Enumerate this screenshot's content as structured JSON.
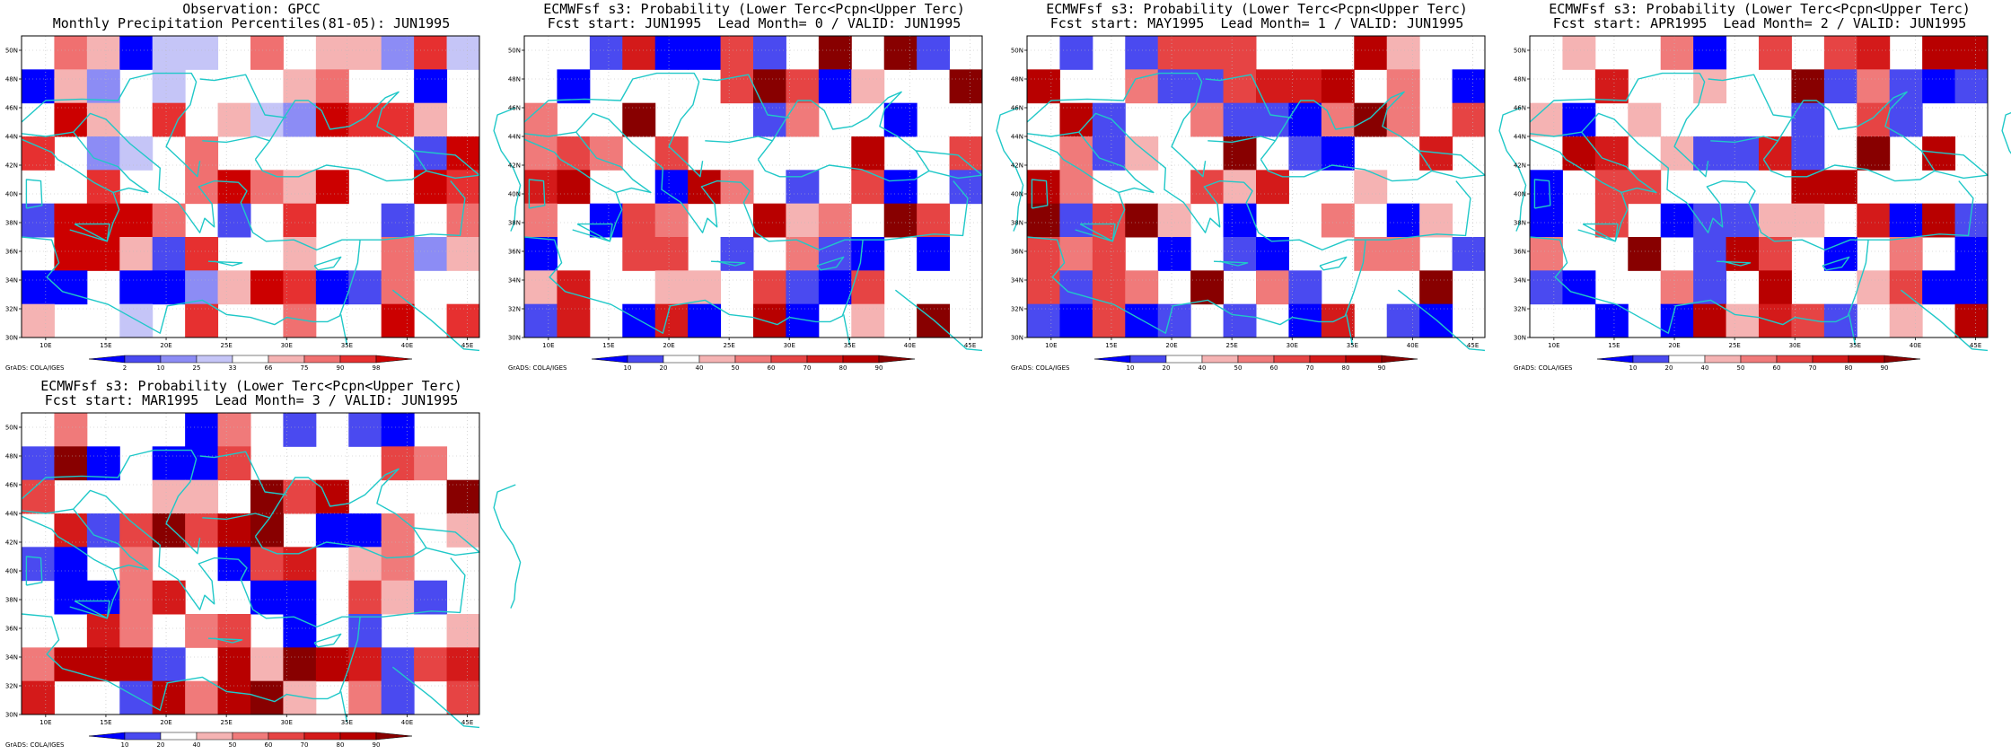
{
  "panels": [
    {
      "title_line1": "Observation: GPCC",
      "title_line2": "Monthly Precipitation Percentiles(81-05): JUN1995",
      "colorbar_labels": [
        "2",
        "10",
        "25",
        "33",
        "66",
        "75",
        "90",
        "98"
      ],
      "colorbar_colors": [
        "#0000ff",
        "#4a4af0",
        "#8c8cf5",
        "#c5c5f7",
        "#ffffff",
        "#f5b3b3",
        "#f07070",
        "#e63030",
        "#cc0000"
      ],
      "credit": "GrADS: COLA/IGES"
    },
    {
      "title_line1": "ECMWFsf s3: Probability (Lower Terc<Pcpn<Upper Terc)",
      "title_line2": "Fcst start: JUN1995  Lead Month= 0 / VALID: JUN1995",
      "colorbar_labels": [
        "10",
        "20",
        "40",
        "50",
        "60",
        "70",
        "80",
        "90"
      ],
      "colorbar_colors": [
        "#0000ff",
        "#4a4af0",
        "#ffffff",
        "#f5b3b3",
        "#f07a7a",
        "#e64444",
        "#d41a1a",
        "#b80000",
        "#880000"
      ],
      "credit": "GrADS: COLA/IGES"
    },
    {
      "title_line1": "ECMWFsf s3: Probability (Lower Terc<Pcpn<Upper Terc)",
      "title_line2": "Fcst start: MAY1995  Lead Month= 1 / VALID: JUN1995",
      "colorbar_labels": [
        "10",
        "20",
        "40",
        "50",
        "60",
        "70",
        "80",
        "90"
      ],
      "colorbar_colors": [
        "#0000ff",
        "#4a4af0",
        "#ffffff",
        "#f5b3b3",
        "#f07a7a",
        "#e64444",
        "#d41a1a",
        "#b80000",
        "#880000"
      ],
      "credit": "GrADS: COLA/IGES"
    },
    {
      "title_line1": "ECMWFsf s3: Probability (Lower Terc<Pcpn<Upper Terc)",
      "title_line2": "Fcst start: APR1995  Lead Month= 2 / VALID: JUN1995",
      "colorbar_labels": [
        "10",
        "20",
        "40",
        "50",
        "60",
        "70",
        "80",
        "90"
      ],
      "colorbar_colors": [
        "#0000ff",
        "#4a4af0",
        "#ffffff",
        "#f5b3b3",
        "#f07a7a",
        "#e64444",
        "#d41a1a",
        "#b80000",
        "#880000"
      ],
      "credit": "GrADS: COLA/IGES"
    },
    {
      "title_line1": "ECMWFsf s3: Probability (Lower Terc<Pcpn<Upper Terc)",
      "title_line2": "Fcst start: MAR1995  Lead Month= 3 / VALID: JUN1995",
      "colorbar_labels": [
        "10",
        "20",
        "40",
        "50",
        "60",
        "70",
        "80",
        "90"
      ],
      "colorbar_colors": [
        "#0000ff",
        "#4a4af0",
        "#ffffff",
        "#f5b3b3",
        "#f07a7a",
        "#e64444",
        "#d41a1a",
        "#b80000",
        "#880000"
      ],
      "credit": "GrADS: COLA/IGES"
    }
  ],
  "map": {
    "lon_range": [
      8,
      46
    ],
    "lat_range": [
      30,
      51
    ],
    "lon_ticks": [
      "10E",
      "15E",
      "20E",
      "25E",
      "30E",
      "35E",
      "40E",
      "45E"
    ],
    "lat_ticks": [
      "30N",
      "32N",
      "34N",
      "36N",
      "38N",
      "40N",
      "42N",
      "44N",
      "46N",
      "48N",
      "50N"
    ],
    "coast_color": "#20c8c8",
    "grid_rows": 9,
    "grid_cols": 14
  }
}
